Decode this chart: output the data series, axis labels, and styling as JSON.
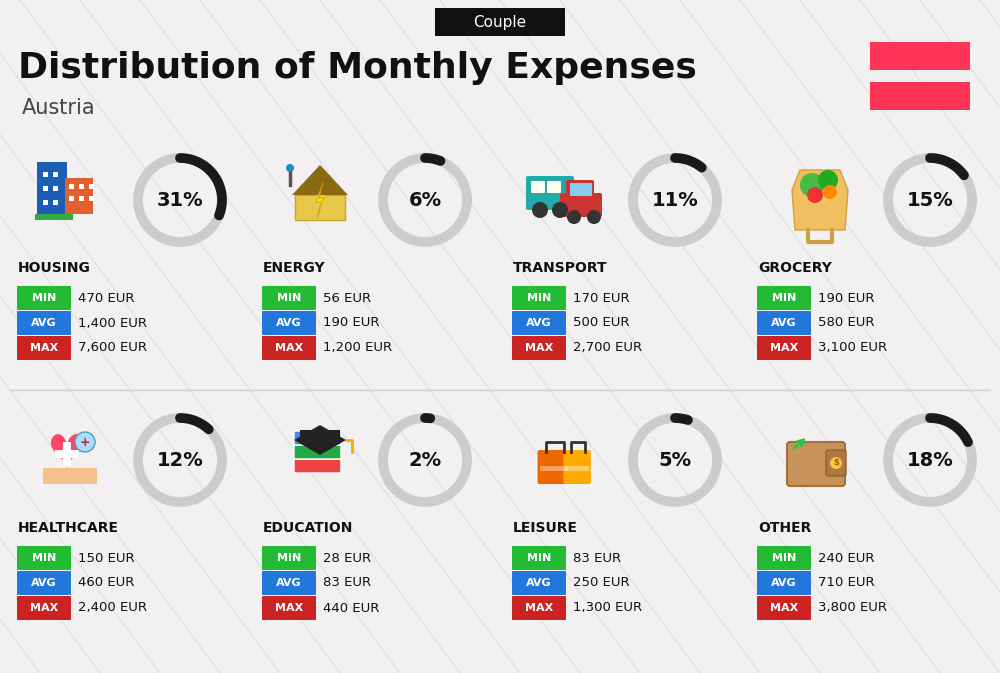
{
  "title": "Distribution of Monthly Expenses",
  "subtitle": "Austria",
  "tag": "Couple",
  "background_color": "#f2f0f0",
  "title_color": "#111111",
  "subtitle_color": "#444444",
  "tag_bg": "#111111",
  "tag_color": "#ffffff",
  "categories": [
    {
      "name": "HOUSING",
      "percent": 31,
      "min_val": "470 EUR",
      "avg_val": "1,400 EUR",
      "max_val": "7,600 EUR",
      "row": 0,
      "col": 0
    },
    {
      "name": "ENERGY",
      "percent": 6,
      "min_val": "56 EUR",
      "avg_val": "190 EUR",
      "max_val": "1,200 EUR",
      "row": 0,
      "col": 1
    },
    {
      "name": "TRANSPORT",
      "percent": 11,
      "min_val": "170 EUR",
      "avg_val": "500 EUR",
      "max_val": "2,700 EUR",
      "row": 0,
      "col": 2
    },
    {
      "name": "GROCERY",
      "percent": 15,
      "min_val": "190 EUR",
      "avg_val": "580 EUR",
      "max_val": "3,100 EUR",
      "row": 0,
      "col": 3
    },
    {
      "name": "HEALTHCARE",
      "percent": 12,
      "min_val": "150 EUR",
      "avg_val": "460 EUR",
      "max_val": "2,400 EUR",
      "row": 1,
      "col": 0
    },
    {
      "name": "EDUCATION",
      "percent": 2,
      "min_val": "28 EUR",
      "avg_val": "83 EUR",
      "max_val": "440 EUR",
      "row": 1,
      "col": 1
    },
    {
      "name": "LEISURE",
      "percent": 5,
      "min_val": "83 EUR",
      "avg_val": "250 EUR",
      "max_val": "1,300 EUR",
      "row": 1,
      "col": 2
    },
    {
      "name": "OTHER",
      "percent": 18,
      "min_val": "240 EUR",
      "avg_val": "710 EUR",
      "max_val": "3,800 EUR",
      "row": 1,
      "col": 3
    }
  ],
  "min_color": "#22bb33",
  "avg_color": "#2277dd",
  "max_color": "#cc2222",
  "circle_dark": "#1a1a1a",
  "circle_gray": "#cccccc",
  "flag_color": "#FF3355"
}
